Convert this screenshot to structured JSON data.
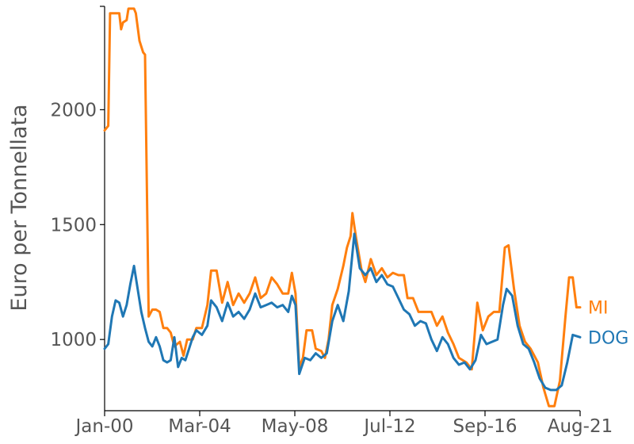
{
  "chart_data": {
    "type": "line",
    "title": "",
    "xlabel": "",
    "ylabel": "Euro per Tonnellata",
    "x_ticks": [
      "Jan-00",
      "Mar-04",
      "May-08",
      "Jul-12",
      "Sep-16",
      "Aug-21"
    ],
    "y_ticks": [
      1000,
      1500,
      2000
    ],
    "xlim": [
      "2000-01",
      "2021-08"
    ],
    "ylim": [
      690,
      2450
    ],
    "grid": false,
    "legend": "labels at line ends (right)",
    "series": [
      {
        "name": "MI",
        "color": "#ff7f0e",
        "points": [
          [
            "2000-01",
            1910
          ],
          [
            "2000-03",
            1930
          ],
          [
            "2000-04",
            2420
          ],
          [
            "2000-07",
            2420
          ],
          [
            "2000-09",
            2420
          ],
          [
            "2000-10",
            2350
          ],
          [
            "2000-11",
            2380
          ],
          [
            "2001-01",
            2390
          ],
          [
            "2001-02",
            2440
          ],
          [
            "2001-05",
            2440
          ],
          [
            "2001-06",
            2420
          ],
          [
            "2001-08",
            2300
          ],
          [
            "2001-10",
            2250
          ],
          [
            "2001-11",
            2240
          ],
          [
            "2002-01",
            1100
          ],
          [
            "2002-03",
            1130
          ],
          [
            "2002-05",
            1130
          ],
          [
            "2002-07",
            1120
          ],
          [
            "2002-09",
            1050
          ],
          [
            "2002-11",
            1050
          ],
          [
            "2003-01",
            1030
          ],
          [
            "2003-03",
            970
          ],
          [
            "2003-06",
            990
          ],
          [
            "2003-08",
            930
          ],
          [
            "2003-10",
            1000
          ],
          [
            "2004-01",
            1000
          ],
          [
            "2004-03",
            1050
          ],
          [
            "2004-06",
            1050
          ],
          [
            "2004-09",
            1150
          ],
          [
            "2004-11",
            1300
          ],
          [
            "2005-02",
            1300
          ],
          [
            "2005-05",
            1160
          ],
          [
            "2005-08",
            1250
          ],
          [
            "2005-11",
            1150
          ],
          [
            "2006-02",
            1200
          ],
          [
            "2006-05",
            1160
          ],
          [
            "2006-08",
            1200
          ],
          [
            "2006-11",
            1270
          ],
          [
            "2007-02",
            1180
          ],
          [
            "2007-05",
            1200
          ],
          [
            "2007-08",
            1270
          ],
          [
            "2007-11",
            1240
          ],
          [
            "2008-02",
            1200
          ],
          [
            "2008-05",
            1200
          ],
          [
            "2008-07",
            1290
          ],
          [
            "2008-09",
            1200
          ],
          [
            "2008-11",
            880
          ],
          [
            "2009-01",
            920
          ],
          [
            "2009-03",
            1040
          ],
          [
            "2009-06",
            1040
          ],
          [
            "2009-08",
            960
          ],
          [
            "2009-11",
            950
          ],
          [
            "2010-01",
            920
          ],
          [
            "2010-03",
            1000
          ],
          [
            "2010-05",
            1150
          ],
          [
            "2010-08",
            1220
          ],
          [
            "2010-11",
            1320
          ],
          [
            "2011-01",
            1400
          ],
          [
            "2011-03",
            1450
          ],
          [
            "2011-04",
            1550
          ],
          [
            "2011-06",
            1440
          ],
          [
            "2011-09",
            1300
          ],
          [
            "2011-11",
            1250
          ],
          [
            "2012-02",
            1350
          ],
          [
            "2012-05",
            1280
          ],
          [
            "2012-08",
            1310
          ],
          [
            "2012-11",
            1270
          ],
          [
            "2013-02",
            1290
          ],
          [
            "2013-05",
            1280
          ],
          [
            "2013-08",
            1280
          ],
          [
            "2013-10",
            1180
          ],
          [
            "2014-01",
            1180
          ],
          [
            "2014-04",
            1120
          ],
          [
            "2014-08",
            1120
          ],
          [
            "2014-11",
            1120
          ],
          [
            "2015-02",
            1060
          ],
          [
            "2015-05",
            1100
          ],
          [
            "2015-08",
            1030
          ],
          [
            "2015-11",
            980
          ],
          [
            "2016-02",
            920
          ],
          [
            "2016-06",
            900
          ],
          [
            "2016-09",
            870
          ],
          [
            "2016-12",
            1160
          ],
          [
            "2017-03",
            1040
          ],
          [
            "2017-06",
            1100
          ],
          [
            "2017-09",
            1120
          ],
          [
            "2017-12",
            1120
          ],
          [
            "2018-03",
            1400
          ],
          [
            "2018-05",
            1410
          ],
          [
            "2018-08",
            1220
          ],
          [
            "2018-11",
            1060
          ],
          [
            "2019-02",
            990
          ],
          [
            "2019-05",
            960
          ],
          [
            "2019-09",
            900
          ],
          [
            "2019-12",
            790
          ],
          [
            "2020-03",
            710
          ],
          [
            "2020-06",
            710
          ],
          [
            "2020-09",
            820
          ],
          [
            "2020-12",
            1100
          ],
          [
            "2021-02",
            1270
          ],
          [
            "2021-04",
            1270
          ],
          [
            "2021-06",
            1140
          ],
          [
            "2021-08",
            1140
          ]
        ]
      },
      {
        "name": "DOG",
        "color": "#1f77b4",
        "points": [
          [
            "2000-01",
            960
          ],
          [
            "2000-03",
            980
          ],
          [
            "2000-05",
            1100
          ],
          [
            "2000-07",
            1170
          ],
          [
            "2000-09",
            1160
          ],
          [
            "2000-11",
            1100
          ],
          [
            "2001-01",
            1150
          ],
          [
            "2001-03",
            1240
          ],
          [
            "2001-05",
            1320
          ],
          [
            "2001-07",
            1220
          ],
          [
            "2001-09",
            1120
          ],
          [
            "2001-11",
            1050
          ],
          [
            "2002-01",
            990
          ],
          [
            "2002-03",
            970
          ],
          [
            "2002-05",
            1010
          ],
          [
            "2002-07",
            970
          ],
          [
            "2002-09",
            910
          ],
          [
            "2002-11",
            900
          ],
          [
            "2003-01",
            910
          ],
          [
            "2003-03",
            1010
          ],
          [
            "2003-05",
            880
          ],
          [
            "2003-07",
            920
          ],
          [
            "2003-09",
            910
          ],
          [
            "2003-11",
            960
          ],
          [
            "2004-01",
            1010
          ],
          [
            "2004-03",
            1040
          ],
          [
            "2004-06",
            1020
          ],
          [
            "2004-09",
            1060
          ],
          [
            "2004-11",
            1170
          ],
          [
            "2005-02",
            1140
          ],
          [
            "2005-05",
            1080
          ],
          [
            "2005-08",
            1160
          ],
          [
            "2005-11",
            1100
          ],
          [
            "2006-02",
            1120
          ],
          [
            "2006-05",
            1090
          ],
          [
            "2006-08",
            1130
          ],
          [
            "2006-11",
            1200
          ],
          [
            "2007-02",
            1140
          ],
          [
            "2007-05",
            1150
          ],
          [
            "2007-08",
            1160
          ],
          [
            "2007-11",
            1140
          ],
          [
            "2008-02",
            1150
          ],
          [
            "2008-05",
            1120
          ],
          [
            "2008-07",
            1190
          ],
          [
            "2008-09",
            1150
          ],
          [
            "2008-11",
            850
          ],
          [
            "2009-02",
            920
          ],
          [
            "2009-05",
            910
          ],
          [
            "2009-08",
            940
          ],
          [
            "2009-11",
            920
          ],
          [
            "2010-02",
            940
          ],
          [
            "2010-05",
            1080
          ],
          [
            "2010-08",
            1150
          ],
          [
            "2010-11",
            1080
          ],
          [
            "2011-02",
            1210
          ],
          [
            "2011-05",
            1460
          ],
          [
            "2011-08",
            1310
          ],
          [
            "2011-11",
            1280
          ],
          [
            "2012-02",
            1310
          ],
          [
            "2012-05",
            1250
          ],
          [
            "2012-08",
            1280
          ],
          [
            "2012-11",
            1240
          ],
          [
            "2013-02",
            1230
          ],
          [
            "2013-05",
            1180
          ],
          [
            "2013-08",
            1130
          ],
          [
            "2013-11",
            1110
          ],
          [
            "2014-02",
            1060
          ],
          [
            "2014-05",
            1080
          ],
          [
            "2014-08",
            1070
          ],
          [
            "2014-11",
            1000
          ],
          [
            "2015-02",
            950
          ],
          [
            "2015-05",
            1010
          ],
          [
            "2015-08",
            980
          ],
          [
            "2015-11",
            920
          ],
          [
            "2016-02",
            890
          ],
          [
            "2016-05",
            900
          ],
          [
            "2016-08",
            870
          ],
          [
            "2016-11",
            910
          ],
          [
            "2017-02",
            1020
          ],
          [
            "2017-05",
            980
          ],
          [
            "2017-08",
            990
          ],
          [
            "2017-11",
            1000
          ],
          [
            "2018-02",
            1150
          ],
          [
            "2018-04",
            1220
          ],
          [
            "2018-07",
            1190
          ],
          [
            "2018-10",
            1060
          ],
          [
            "2019-01",
            980
          ],
          [
            "2019-04",
            960
          ],
          [
            "2019-07",
            900
          ],
          [
            "2019-10",
            830
          ],
          [
            "2020-01",
            790
          ],
          [
            "2020-04",
            780
          ],
          [
            "2020-07",
            780
          ],
          [
            "2020-10",
            800
          ],
          [
            "2021-01",
            900
          ],
          [
            "2021-04",
            1020
          ],
          [
            "2021-08",
            1010
          ]
        ]
      }
    ]
  }
}
